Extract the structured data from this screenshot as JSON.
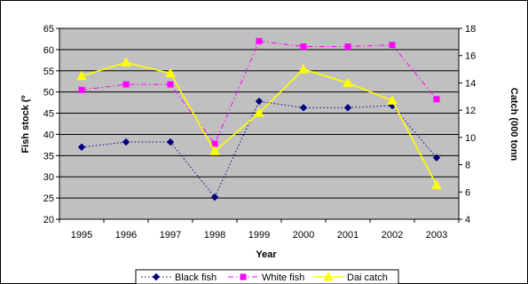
{
  "chart_data": {
    "type": "line",
    "title": "",
    "xlabel": "Year",
    "ylabel_left": "Fish stock (º",
    "ylabel_right": "Catch (000 tonn",
    "categories": [
      "1995",
      "1996",
      "1997",
      "1998",
      "1999",
      "2000",
      "2001",
      "2002",
      "2003"
    ],
    "ylim_left": [
      20,
      65
    ],
    "yticks_left": [
      20,
      25,
      30,
      35,
      40,
      45,
      50,
      55,
      60,
      65
    ],
    "ylim_right": [
      4,
      18
    ],
    "yticks_right": [
      4,
      6,
      8,
      10,
      12,
      14,
      16,
      18
    ],
    "grid": true,
    "legend_position": "bottom",
    "background": "#c0c0c0",
    "series": [
      {
        "name": "Black fish",
        "axis": "left",
        "color": "#000080",
        "marker": "diamond",
        "line_style": "dotted",
        "values": [
          37,
          38.2,
          38.2,
          25.2,
          47.8,
          46.3,
          46.3,
          46.8,
          34.5
        ]
      },
      {
        "name": "White fish",
        "axis": "left",
        "color": "#ff00ff",
        "marker": "square",
        "line_style": "dashdot",
        "values": [
          50.5,
          51.8,
          51.8,
          37.8,
          62,
          60.7,
          60.7,
          61.1,
          48.3
        ]
      },
      {
        "name": "Dai catch",
        "axis": "right",
        "color": "#ffff00",
        "marker": "triangle",
        "line_style": "solid",
        "values": [
          14.5,
          15.5,
          14.7,
          9,
          11.8,
          15,
          14,
          12.7,
          6.5
        ]
      }
    ]
  }
}
